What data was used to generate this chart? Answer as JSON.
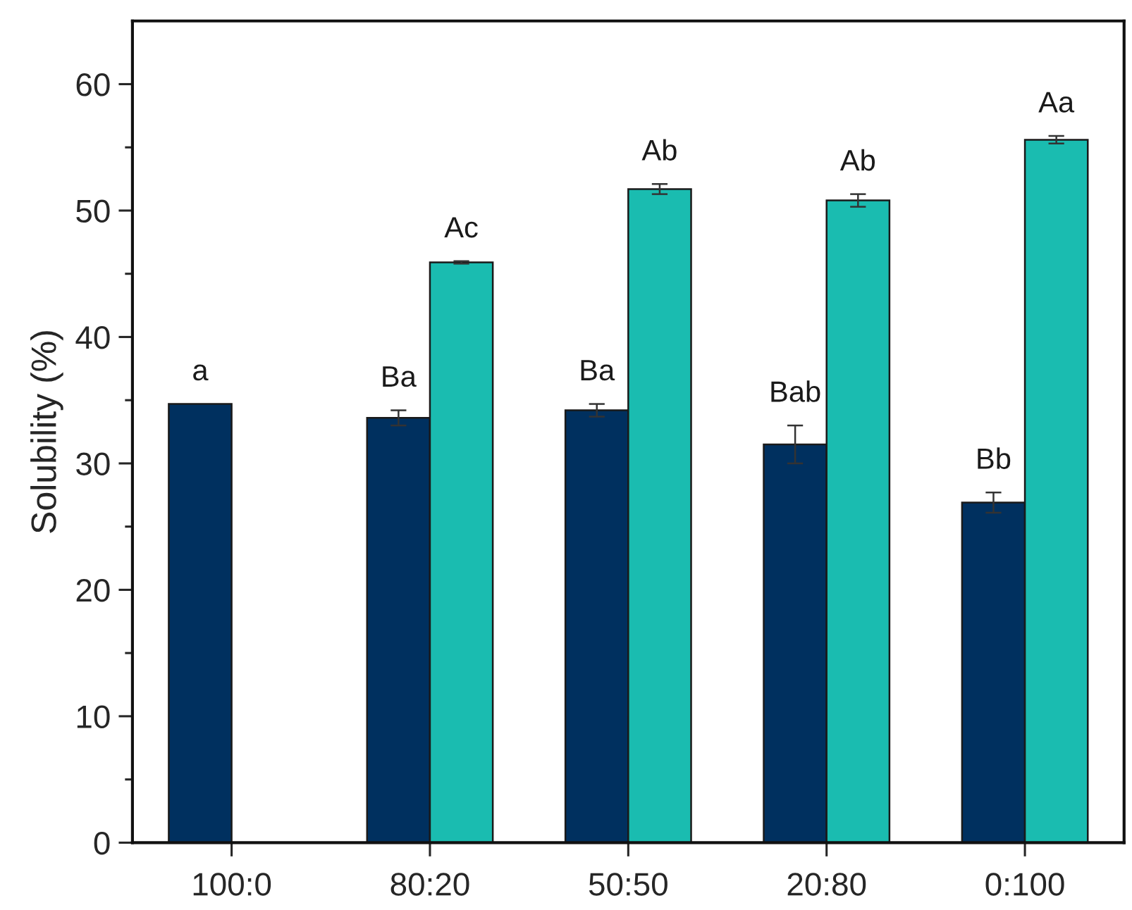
{
  "chart_data": {
    "type": "bar",
    "ylabel": "Solubility (%)",
    "categories": [
      "100:0",
      "80:20",
      "50:50",
      "20:80",
      "0:100"
    ],
    "series": [
      {
        "color": "#00305f",
        "values": [
          34.7,
          33.6,
          34.2,
          31.5,
          26.9
        ],
        "errors": [
          null,
          0.6,
          0.5,
          1.5,
          0.8
        ],
        "value_labels": [
          "a",
          "Ba",
          "Ba",
          "Bab",
          "Bb"
        ]
      },
      {
        "color": "#1abcb0",
        "values": [
          null,
          45.9,
          51.7,
          50.8,
          55.6
        ],
        "errors": [
          null,
          0.1,
          0.4,
          0.5,
          0.3
        ],
        "value_labels": [
          null,
          "Ac",
          "Ab",
          "Ab",
          "Aa"
        ]
      }
    ],
    "ylim": [
      0,
      65
    ],
    "yticks": [
      0,
      {
        "value": 5,
        "label": null
      },
      10,
      {
        "value": 15,
        "label": null
      },
      20,
      {
        "value": 25,
        "label": null
      },
      30,
      {
        "value": 35,
        "label": null
      },
      40,
      {
        "value": 45,
        "label": null
      },
      50,
      {
        "value": 55,
        "label": null
      },
      60
    ],
    "grid": false,
    "legend": false
  }
}
